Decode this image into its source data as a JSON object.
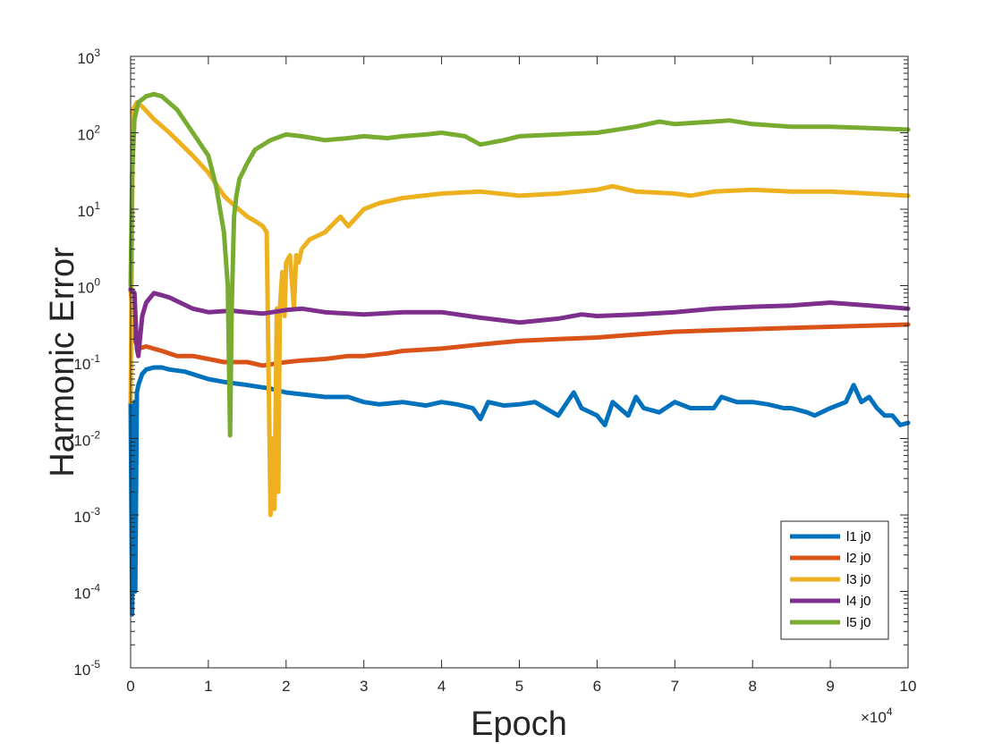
{
  "chart_data": {
    "type": "line",
    "title": "",
    "xlabel": "Epoch",
    "ylabel": "Harmonic Error",
    "x_multiplier_label": "×10",
    "x_multiplier_exp": "4",
    "x_scale_factor": 10000,
    "xlim": [
      0,
      100000
    ],
    "ylim": [
      1e-05,
      1000
    ],
    "yscale": "log",
    "grid": false,
    "legend_position": "bottom-right",
    "x_ticks": [
      {
        "value": 0,
        "label": "0"
      },
      {
        "value": 10000,
        "label": "1"
      },
      {
        "value": 20000,
        "label": "2"
      },
      {
        "value": 30000,
        "label": "3"
      },
      {
        "value": 40000,
        "label": "4"
      },
      {
        "value": 50000,
        "label": "5"
      },
      {
        "value": 60000,
        "label": "6"
      },
      {
        "value": 70000,
        "label": "7"
      },
      {
        "value": 80000,
        "label": "8"
      },
      {
        "value": 90000,
        "label": "9"
      },
      {
        "value": 100000,
        "label": "10"
      }
    ],
    "y_ticks": [
      {
        "value": 1e-05,
        "base": "10",
        "exp": "-5"
      },
      {
        "value": 0.0001,
        "base": "10",
        "exp": "-4"
      },
      {
        "value": 0.001,
        "base": "10",
        "exp": "-3"
      },
      {
        "value": 0.01,
        "base": "10",
        "exp": "-2"
      },
      {
        "value": 0.1,
        "base": "10",
        "exp": "-1"
      },
      {
        "value": 1,
        "base": "10",
        "exp": "0"
      },
      {
        "value": 10,
        "base": "10",
        "exp": "1"
      },
      {
        "value": 100,
        "base": "10",
        "exp": "2"
      },
      {
        "value": 1000,
        "base": "10",
        "exp": "3"
      }
    ],
    "series": [
      {
        "name": "l1 j0",
        "color": "#0072BD",
        "x": [
          0,
          200,
          400,
          600,
          800,
          1000,
          1500,
          2000,
          3000,
          4000,
          5000,
          7000,
          10000,
          12000,
          15000,
          18000,
          20000,
          25000,
          28000,
          30000,
          32000,
          35000,
          38000,
          40000,
          42000,
          44000,
          45000,
          46000,
          48000,
          50000,
          52000,
          55000,
          57000,
          58000,
          60000,
          61000,
          62000,
          64000,
          65000,
          66000,
          68000,
          70000,
          72000,
          75000,
          76000,
          78000,
          80000,
          82000,
          84000,
          85000,
          87000,
          88000,
          90000,
          92000,
          93000,
          94000,
          95000,
          96000,
          97000,
          98000,
          99000,
          100000
        ],
        "y": [
          0.03,
          5e-05,
          0.03,
          0.0001,
          0.04,
          0.05,
          0.07,
          0.08,
          0.085,
          0.085,
          0.08,
          0.075,
          0.06,
          0.055,
          0.05,
          0.045,
          0.04,
          0.035,
          0.035,
          0.03,
          0.028,
          0.03,
          0.027,
          0.03,
          0.028,
          0.025,
          0.018,
          0.03,
          0.027,
          0.028,
          0.03,
          0.02,
          0.04,
          0.025,
          0.02,
          0.015,
          0.03,
          0.02,
          0.035,
          0.025,
          0.022,
          0.03,
          0.025,
          0.025,
          0.035,
          0.03,
          0.03,
          0.028,
          0.025,
          0.025,
          0.022,
          0.02,
          0.025,
          0.03,
          0.05,
          0.03,
          0.035,
          0.025,
          0.02,
          0.02,
          0.015,
          0.016
        ]
      },
      {
        "name": "l2 j0",
        "color": "#D95319",
        "x": [
          0,
          500,
          1000,
          2000,
          4000,
          6000,
          8000,
          10000,
          12000,
          15000,
          17000,
          20000,
          22000,
          25000,
          28000,
          30000,
          33000,
          35000,
          40000,
          45000,
          50000,
          55000,
          60000,
          65000,
          70000,
          75000,
          80000,
          85000,
          90000,
          95000,
          100000
        ],
        "y": [
          0.9,
          0.2,
          0.15,
          0.16,
          0.14,
          0.12,
          0.12,
          0.11,
          0.1,
          0.1,
          0.09,
          0.1,
          0.105,
          0.11,
          0.12,
          0.12,
          0.13,
          0.14,
          0.15,
          0.17,
          0.19,
          0.2,
          0.21,
          0.23,
          0.25,
          0.26,
          0.27,
          0.28,
          0.29,
          0.3,
          0.31
        ]
      },
      {
        "name": "l3 j0",
        "color": "#EDB120",
        "x": [
          0,
          300,
          800,
          1500,
          3000,
          5000,
          8000,
          10000,
          12000,
          13000,
          15000,
          16000,
          17000,
          17500,
          18000,
          18200,
          18500,
          18800,
          19000,
          19200,
          19500,
          19800,
          20000,
          20500,
          21000,
          21300,
          21600,
          22000,
          23000,
          25000,
          27000,
          28000,
          30000,
          32000,
          35000,
          40000,
          45000,
          50000,
          55000,
          60000,
          62000,
          65000,
          70000,
          72000,
          75000,
          80000,
          85000,
          90000,
          95000,
          100000
        ],
        "y": [
          0.03,
          200,
          250,
          220,
          150,
          100,
          50,
          30,
          15,
          12,
          8,
          7,
          6,
          5,
          0.001,
          0.01,
          0.0012,
          0.5,
          0.002,
          0.5,
          1.5,
          0.4,
          2,
          2.5,
          0.5,
          2.5,
          2,
          3,
          4,
          5,
          8,
          6,
          10,
          12,
          14,
          16,
          17,
          15,
          16,
          18,
          20,
          17,
          16,
          15,
          17,
          18,
          17,
          17,
          16,
          15
        ]
      },
      {
        "name": "l4 j0",
        "color": "#7E2F8E",
        "x": [
          0,
          500,
          800,
          1000,
          1200,
          1500,
          2000,
          3000,
          4000,
          5000,
          8000,
          10000,
          13000,
          15000,
          17000,
          20000,
          22000,
          25000,
          28000,
          30000,
          35000,
          40000,
          45000,
          48000,
          50000,
          55000,
          58000,
          60000,
          65000,
          70000,
          75000,
          80000,
          85000,
          90000,
          95000,
          100000
        ],
        "y": [
          0.9,
          0.8,
          0.15,
          0.12,
          0.2,
          0.4,
          0.6,
          0.8,
          0.75,
          0.7,
          0.5,
          0.45,
          0.47,
          0.45,
          0.43,
          0.48,
          0.5,
          0.45,
          0.43,
          0.42,
          0.45,
          0.45,
          0.38,
          0.35,
          0.33,
          0.37,
          0.42,
          0.4,
          0.42,
          0.45,
          0.5,
          0.53,
          0.55,
          0.6,
          0.55,
          0.5
        ]
      },
      {
        "name": "l5 j0",
        "color": "#77AC30",
        "x": [
          0,
          200,
          500,
          1000,
          2000,
          3000,
          4000,
          6000,
          8000,
          10000,
          11000,
          12000,
          12500,
          12800,
          13000,
          13300,
          13600,
          14000,
          15000,
          16000,
          18000,
          20000,
          22000,
          25000,
          28000,
          30000,
          33000,
          35000,
          38000,
          40000,
          43000,
          45000,
          48000,
          50000,
          55000,
          60000,
          65000,
          68000,
          70000,
          75000,
          77000,
          80000,
          85000,
          90000,
          95000,
          100000
        ],
        "y": [
          1,
          30,
          150,
          250,
          300,
          320,
          300,
          200,
          100,
          50,
          20,
          5,
          1,
          0.011,
          0.5,
          8,
          15,
          25,
          40,
          60,
          80,
          95,
          90,
          80,
          85,
          90,
          85,
          90,
          95,
          100,
          90,
          70,
          80,
          90,
          95,
          100,
          120,
          140,
          130,
          140,
          145,
          130,
          120,
          120,
          115,
          110
        ]
      }
    ]
  }
}
